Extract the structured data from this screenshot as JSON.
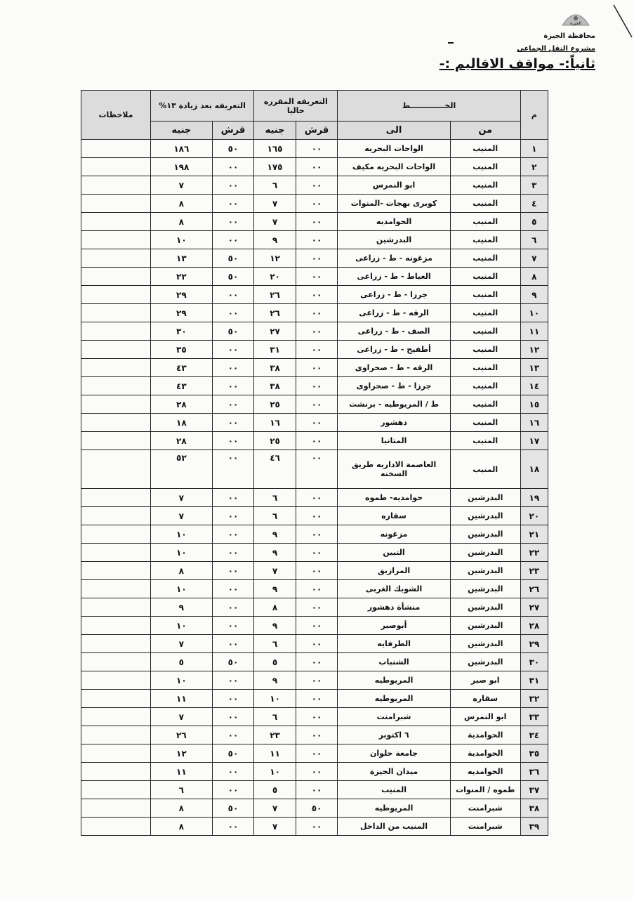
{
  "header": {
    "logo_caption": "الجيزة",
    "organization": "محافظة الجيزة",
    "project": "مشروع النقل الجماعى",
    "section_title": "ثانياً:- مواقف الاقاليم :-"
  },
  "table": {
    "headers": {
      "number": "م",
      "line": "الخـــــــــــــط",
      "from": "من",
      "to": "الى",
      "current_fare": "التعريفه المقرره حاليا",
      "new_fare": "التعريفه بعد زيادة ١٣%",
      "notes": "ملاحظات",
      "piaster": "قرش",
      "pound": "جنيه"
    },
    "rows": [
      [
        "١",
        "المنيب",
        "الواحات البحريه",
        "٠٠",
        "١٦٥",
        "٥٠",
        "١٨٦"
      ],
      [
        "٢",
        "المنيب",
        "الواحات البحريه مكيف",
        "٠٠",
        "١٧٥",
        "٠٠",
        "١٩٨"
      ],
      [
        "٣",
        "المنيب",
        "ابو النمرس",
        "٠٠",
        "٦",
        "٠٠",
        "٧"
      ],
      [
        "٤",
        "المنيب",
        "كوبرى بهجات -المنوات",
        "٠٠",
        "٧",
        "٠٠",
        "٨"
      ],
      [
        "٥",
        "المنيب",
        "الحوامديه",
        "٠٠",
        "٧",
        "٠٠",
        "٨"
      ],
      [
        "٦",
        "المنيب",
        "البدرشين",
        "٠٠",
        "٩",
        "٠٠",
        "١٠"
      ],
      [
        "٧",
        "المنيب",
        "مزغونه - ط - زراعى",
        "٠٠",
        "١٢",
        "٥٠",
        "١٣"
      ],
      [
        "٨",
        "المنيب",
        "العياط - ط - زراعى",
        "٠٠",
        "٢٠",
        "٥٠",
        "٢٢"
      ],
      [
        "٩",
        "المنيب",
        "جرزا - ط - زراعى",
        "٠٠",
        "٢٦",
        "٠٠",
        "٢٩"
      ],
      [
        "١٠",
        "المنيب",
        "الرقه - ط - زراعى",
        "٠٠",
        "٢٦",
        "٠٠",
        "٢٩"
      ],
      [
        "١١",
        "المنيب",
        "الصف - ط - زراعى",
        "٠٠",
        "٢٧",
        "٥٠",
        "٣٠"
      ],
      [
        "١٢",
        "المنيب",
        "أطفيح - ط - زراعى",
        "٠٠",
        "٣١",
        "٠٠",
        "٣٥"
      ],
      [
        "١٣",
        "المنيب",
        "الرقه - ط - صحراوى",
        "٠٠",
        "٣٨",
        "٠٠",
        "٤٣"
      ],
      [
        "١٤",
        "المنيب",
        "جرزا - ط - صحراوى",
        "٠٠",
        "٣٨",
        "٠٠",
        "٤٣"
      ],
      [
        "١٥",
        "المنيب",
        "ط / المريوطيه - برنشت",
        "٠٠",
        "٢٥",
        "٠٠",
        "٢٨"
      ],
      [
        "١٦",
        "المنيب",
        "دهشور",
        "٠٠",
        "١٦",
        "٠٠",
        "١٨"
      ],
      [
        "١٧",
        "المنيب",
        "المتانيا",
        "٠٠",
        "٢٥",
        "٠٠",
        "٢٨"
      ],
      [
        "١٨",
        "المنيب",
        "العاصمة الاداريه طريق السخنه",
        "٠٠",
        "٤٦",
        "٠٠",
        "٥٢"
      ],
      [
        "١٩",
        "البدرشين",
        "حوامديه- طموه",
        "٠٠",
        "٦",
        "٠٠",
        "٧"
      ],
      [
        "٢٠",
        "البدرشين",
        "سقاره",
        "٠٠",
        "٦",
        "٠٠",
        "٧"
      ],
      [
        "٢١",
        "البدرشين",
        "مزغونه",
        "٠٠",
        "٩",
        "٠٠",
        "١٠"
      ],
      [
        "٢٢",
        "البدرشين",
        "التبين",
        "٠٠",
        "٩",
        "٠٠",
        "١٠"
      ],
      [
        "٢٣",
        "البدرشين",
        "المرازيق",
        "٠٠",
        "٧",
        "٠٠",
        "٨"
      ],
      [
        "٢٦",
        "البدرشين",
        "الشوبك الغربى",
        "٠٠",
        "٩",
        "٠٠",
        "١٠"
      ],
      [
        "٢٧",
        "البدرشين",
        "منشأة دهشور",
        "٠٠",
        "٨",
        "٠٠",
        "٩"
      ],
      [
        "٢٨",
        "البدرشين",
        "أبوصير",
        "٠٠",
        "٩",
        "٠٠",
        "١٠"
      ],
      [
        "٢٩",
        "البدرشين",
        "الطرفايه",
        "٠٠",
        "٦",
        "٠٠",
        "٧"
      ],
      [
        "٣٠",
        "البدرشين",
        "الشنباب",
        "٠٠",
        "٥",
        "٥٠",
        "٥"
      ],
      [
        "٣١",
        "ابو صير",
        "المريوطيه",
        "٠٠",
        "٩",
        "٠٠",
        "١٠"
      ],
      [
        "٣٢",
        "سقاره",
        "المريوطيه",
        "٠٠",
        "١٠",
        "٠٠",
        "١١"
      ],
      [
        "٣٣",
        "ابو النمرس",
        "شبرامنت",
        "٠٠",
        "٦",
        "٠٠",
        "٧"
      ],
      [
        "٣٤",
        "الحوامدية",
        "٦ اكتوبر",
        "٠٠",
        "٢٣",
        "٠٠",
        "٢٦"
      ],
      [
        "٣٥",
        "الحوامدية",
        "جامعة حلوان",
        "٠٠",
        "١١",
        "٥٠",
        "١٢"
      ],
      [
        "٣٦",
        "الحوامديه",
        "ميدان الجيزة",
        "٠٠",
        "١٠",
        "٠٠",
        "١١"
      ],
      [
        "٣٧",
        "طموه / المنوات",
        "المنيب",
        "٠٠",
        "٥",
        "٠٠",
        "٦"
      ],
      [
        "٣٨",
        "شبرامنت",
        "المريوطيه",
        "٥٠",
        "٧",
        "٥٠",
        "٨"
      ],
      [
        "٣٩",
        "شبرامنت",
        "المنيب من الداخل",
        "٠٠",
        "٧",
        "٠٠",
        "٨"
      ]
    ]
  }
}
